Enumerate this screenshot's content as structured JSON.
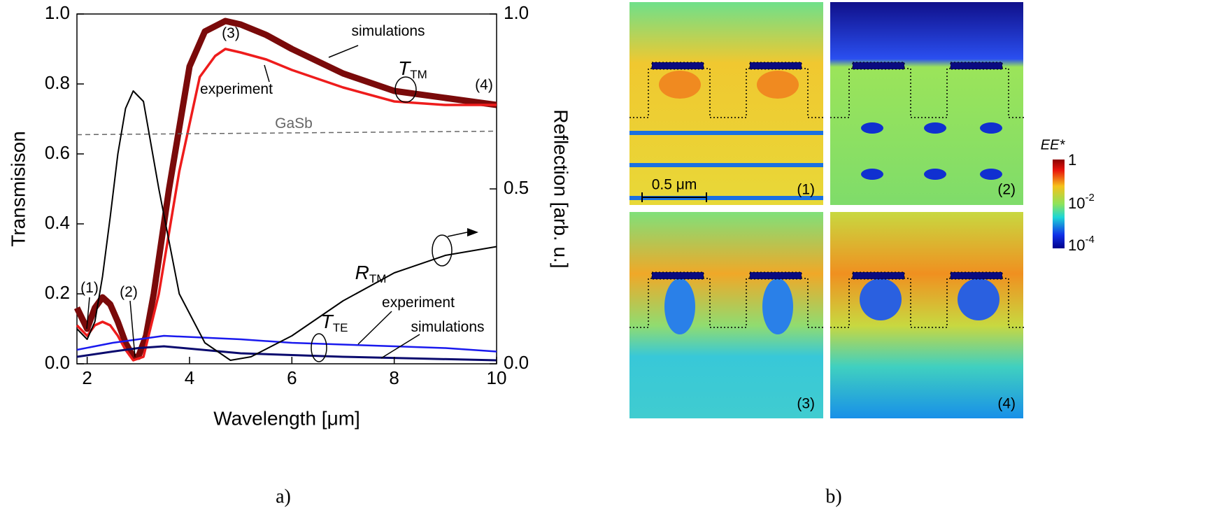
{
  "chart_data": {
    "type": "line",
    "xlabel": "Wavelength [μm]",
    "ylabel": "Transmisison",
    "y2label": "Reflection [arb. u.]",
    "xlim": [
      1.8,
      10
    ],
    "xticks": [
      2,
      4,
      6,
      8,
      10
    ],
    "ylim": [
      0,
      1
    ],
    "yticks": [
      {
        "value": 0,
        "label": "0.0"
      },
      0.2,
      0.4,
      0.6,
      0.8,
      {
        "value": 1,
        "label": "1.0"
      }
    ],
    "y2lim": [
      0,
      1
    ],
    "y2ticks": [
      {
        "value": 0,
        "label": "0.0"
      },
      0.5,
      {
        "value": 1,
        "label": "1.0"
      }
    ],
    "series": [
      {
        "name": "T_TM simulations",
        "color": "#7a0a0a",
        "x": [
          1.8,
          2.0,
          2.15,
          2.3,
          2.45,
          2.6,
          2.75,
          2.9,
          3.0,
          3.15,
          3.3,
          3.6,
          4.0,
          4.3,
          4.7,
          5.0,
          5.5,
          6.0,
          7.0,
          8.0,
          9.0,
          10.0
        ],
        "values": [
          0.16,
          0.1,
          0.16,
          0.19,
          0.17,
          0.12,
          0.06,
          0.02,
          0.02,
          0.08,
          0.2,
          0.5,
          0.85,
          0.95,
          0.98,
          0.97,
          0.94,
          0.9,
          0.83,
          0.78,
          0.76,
          0.74
        ]
      },
      {
        "name": "T_TM experiment",
        "color": "#ee1c1c",
        "x": [
          1.8,
          2.0,
          2.15,
          2.3,
          2.45,
          2.6,
          2.75,
          2.9,
          3.1,
          3.4,
          3.8,
          4.2,
          4.5,
          4.7,
          5.0,
          5.5,
          6.0,
          7.0,
          8.0,
          9.0,
          10.0
        ],
        "values": [
          0.11,
          0.08,
          0.11,
          0.12,
          0.11,
          0.08,
          0.04,
          0.01,
          0.02,
          0.2,
          0.55,
          0.82,
          0.88,
          0.9,
          0.89,
          0.87,
          0.84,
          0.79,
          0.75,
          0.74,
          0.74
        ]
      },
      {
        "name": "GaSb",
        "color": "#666666",
        "dashed": true,
        "x": [
          1.8,
          10.0
        ],
        "values": [
          0.655,
          0.665
        ]
      },
      {
        "name": "T_TE experiment",
        "color": "#1a1aee",
        "x": [
          1.8,
          2.5,
          3.5,
          5.0,
          6.0,
          7.0,
          8.0,
          9.0,
          10.0
        ],
        "values": [
          0.04,
          0.06,
          0.08,
          0.07,
          0.06,
          0.055,
          0.05,
          0.045,
          0.035
        ]
      },
      {
        "name": "T_TE simulations",
        "color": "#0a0a6e",
        "x": [
          1.8,
          2.5,
          3.0,
          3.5,
          5.0,
          7.0,
          8.5,
          10.0
        ],
        "values": [
          0.02,
          0.035,
          0.045,
          0.05,
          0.03,
          0.02,
          0.015,
          0.01
        ]
      },
      {
        "name": "R_TM",
        "color": "#000000",
        "axis": "y2",
        "x": [
          1.8,
          2.0,
          2.15,
          2.3,
          2.45,
          2.6,
          2.75,
          2.9,
          3.1,
          3.4,
          3.8,
          4.3,
          4.8,
          5.2,
          6.0,
          7.0,
          8.0,
          9.0,
          10.0
        ],
        "values": [
          0.1,
          0.07,
          0.12,
          0.25,
          0.42,
          0.6,
          0.73,
          0.78,
          0.75,
          0.5,
          0.2,
          0.06,
          0.01,
          0.02,
          0.08,
          0.18,
          0.26,
          0.31,
          0.335
        ]
      }
    ],
    "annotations": [
      {
        "text": "simulations"
      },
      {
        "text": "experiment"
      },
      {
        "text": "T",
        "sub": "TM"
      },
      {
        "text": "(3)"
      },
      {
        "text": "(4)"
      },
      {
        "text": "GaSb"
      },
      {
        "text": "(1)"
      },
      {
        "text": "(2)"
      },
      {
        "text": "R",
        "sub": "TM"
      },
      {
        "text": "experiment"
      },
      {
        "text": "T",
        "sub": "TE"
      },
      {
        "text": "simulations"
      }
    ]
  },
  "panel_labels": [
    "a)",
    "b)"
  ],
  "field_maps": {
    "panels": [
      "(1)",
      "(2)",
      "(3)",
      "(4)"
    ],
    "scale_bar": "0.5 μm",
    "colorbar": {
      "title": "EE*",
      "ticks": [
        {
          "base": "1"
        },
        {
          "base": "10",
          "exp": "-2"
        },
        {
          "base": "10",
          "exp": "-4"
        }
      ]
    }
  }
}
